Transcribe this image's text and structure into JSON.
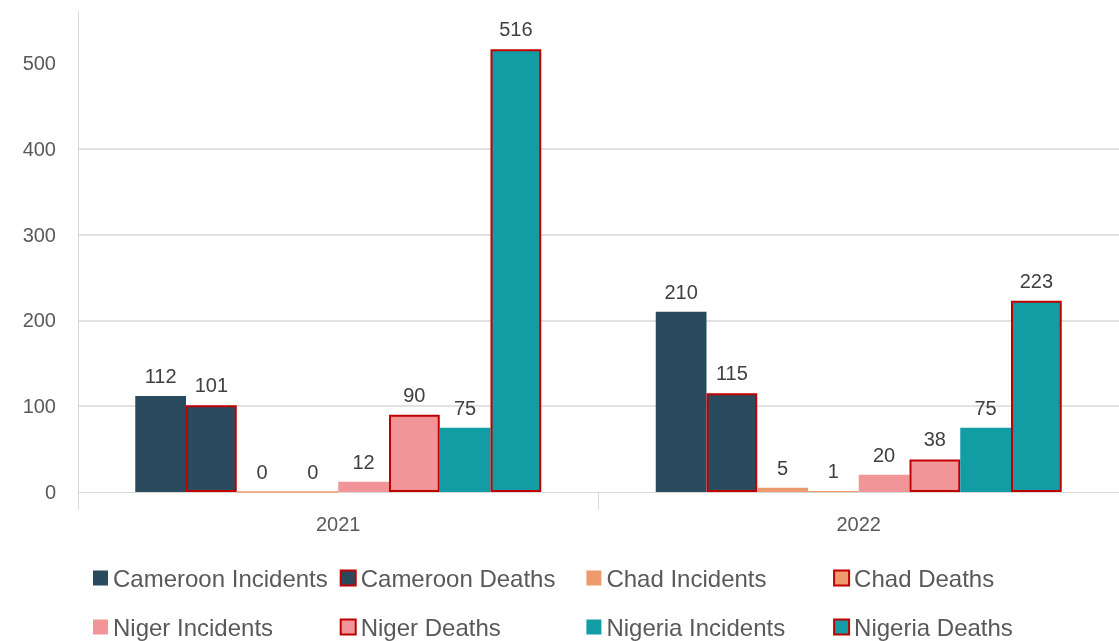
{
  "chart_data": {
    "type": "bar",
    "categories": [
      "2021",
      "2022"
    ],
    "series": [
      {
        "name": "Cameroon Incidents",
        "color": "#2a4b5e",
        "values": [
          112,
          210
        ]
      },
      {
        "name": "Cameroon Deaths",
        "color": "#2a4b5e",
        "values": [
          101,
          115
        ]
      },
      {
        "name": "Chad Incidents",
        "color": "#ef9a6e",
        "values": [
          0,
          5
        ]
      },
      {
        "name": "Chad Deaths",
        "color": "#ef9a6e",
        "values": [
          0,
          1
        ]
      },
      {
        "name": "Niger Incidents",
        "color": "#f29599",
        "values": [
          12,
          20
        ]
      },
      {
        "name": "Niger Deaths",
        "color": "#f29599",
        "values": [
          90,
          38
        ]
      },
      {
        "name": "Nigeria Incidents",
        "color": "#129ca4",
        "values": [
          75,
          75
        ]
      },
      {
        "name": "Nigeria Deaths",
        "color": "#129ca4",
        "values": [
          516,
          223
        ]
      }
    ],
    "ylim": [
      0,
      560
    ],
    "yticks": [
      0,
      100,
      200,
      300,
      400,
      500
    ],
    "grid": "y",
    "legend": "bottom",
    "data_labels": true
  }
}
